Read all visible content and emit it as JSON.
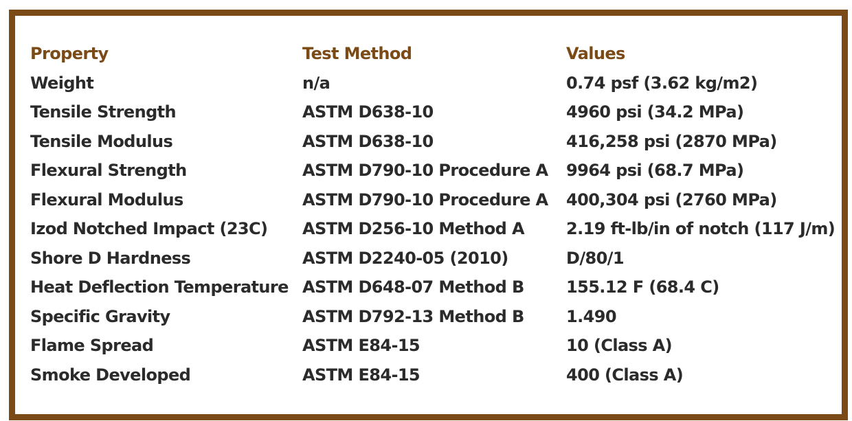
{
  "header": {
    "property": "Property",
    "test_method": "Test Method",
    "values": "Values"
  },
  "rows": [
    {
      "property": "Weight",
      "test_method": "n/a",
      "value": "0.74 psf (3.62 kg/m2)"
    },
    {
      "property": "Tensile Strength",
      "test_method": "ASTM D638-10",
      "value": "4960 psi (34.2 MPa)"
    },
    {
      "property": "Tensile Modulus",
      "test_method": "ASTM D638-10",
      "value": "416,258 psi (2870 MPa)"
    },
    {
      "property": "Flexural Strength",
      "test_method": "ASTM D790-10 Procedure A",
      "value": "9964 psi (68.7 MPa)"
    },
    {
      "property": "Flexural Modulus",
      "test_method": "ASTM D790-10 Procedure A",
      "value": "400,304 psi (2760 MPa)"
    },
    {
      "property": "Izod Notched Impact (23C)",
      "test_method": "ASTM D256-10 Method A",
      "value": "2.19 ft-lb/in of notch (117 J/m)"
    },
    {
      "property": "Shore D Hardness",
      "test_method": "ASTM D2240-05 (2010)",
      "value": "D/80/1"
    },
    {
      "property": "Heat Deflection Temperature",
      "test_method": "ASTM D648-07 Method B",
      "value": "155.12 F (68.4 C)"
    },
    {
      "property": "Specific Gravity",
      "test_method": "ASTM D792-13 Method B",
      "value": "1.490"
    },
    {
      "property": "Flame Spread",
      "test_method": "ASTM E84-15",
      "value": "10 (Class A)"
    },
    {
      "property": "Smoke Developed",
      "test_method": "ASTM E84-15",
      "value": "400 (Class A)"
    }
  ],
  "colors": {
    "border": "#7a4a17",
    "header_text": "#7a4a17",
    "body_text": "#2b2b2b"
  }
}
